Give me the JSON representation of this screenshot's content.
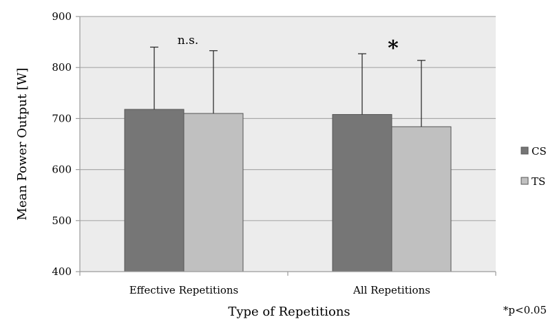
{
  "chart_data": {
    "type": "bar",
    "categories": [
      "Effective Repetitions",
      "All Repetitions"
    ],
    "series": [
      {
        "name": "CS",
        "values": [
          718,
          708
        ],
        "error_upper": [
          840,
          827
        ],
        "color": "#767676"
      },
      {
        "name": "TS",
        "values": [
          710,
          684
        ],
        "error_upper": [
          833,
          814
        ],
        "color": "#c0c0c0"
      }
    ],
    "xlabel": "Type of Repetitions",
    "ylabel": "Mean Power Output [W]",
    "ylim": [
      400,
      900
    ],
    "yticks": [
      400,
      500,
      600,
      700,
      800,
      900
    ],
    "grid": true,
    "plot_background": "#ececec",
    "legend": {
      "placement": "right",
      "entries": [
        "CS",
        "TS"
      ]
    },
    "annotations": [
      "n.s.",
      "*"
    ],
    "footnote": "*p<0.05"
  }
}
